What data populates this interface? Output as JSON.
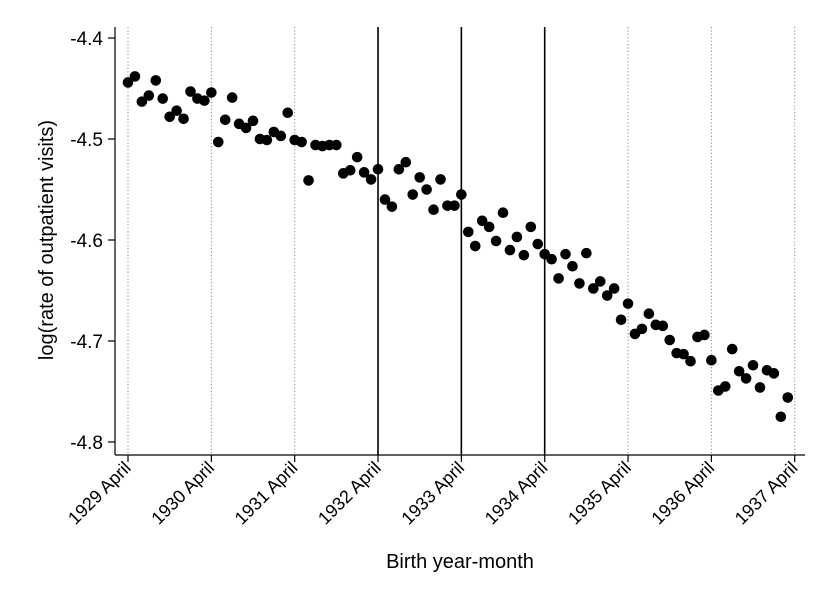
{
  "chart_data": {
    "type": "scatter",
    "xlabel": "Birth year-month",
    "ylabel": "log(rate of outpatient visits)",
    "ylim": [
      -4.81,
      -4.39
    ],
    "yticks": [
      {
        "value": -4.4,
        "label": "-4.4"
      },
      {
        "value": -4.5,
        "label": "-4.5"
      },
      {
        "value": -4.6,
        "label": "-4.6"
      },
      {
        "value": -4.7,
        "label": "-4.7"
      },
      {
        "value": -4.8,
        "label": "-4.8"
      }
    ],
    "xlim": [
      0,
      100
    ],
    "xticks": [
      {
        "value": 0,
        "label": "1929 April"
      },
      {
        "value": 12,
        "label": "1930 April"
      },
      {
        "value": 24,
        "label": "1931 April"
      },
      {
        "value": 36,
        "label": "1932 April"
      },
      {
        "value": 48,
        "label": "1933 April"
      },
      {
        "value": 60,
        "label": "1934 April"
      },
      {
        "value": 72,
        "label": "1935 April"
      },
      {
        "value": 84,
        "label": "1936 April"
      },
      {
        "value": 96,
        "label": "1937 April"
      }
    ],
    "dotted_lines_at": [
      0,
      12,
      24,
      72,
      84,
      96
    ],
    "solid_lines_at": [
      36,
      48,
      60
    ],
    "grid": false,
    "points": [
      [
        0,
        -4.444
      ],
      [
        1,
        -4.438
      ],
      [
        2,
        -4.463
      ],
      [
        3,
        -4.457
      ],
      [
        4,
        -4.442
      ],
      [
        5,
        -4.46
      ],
      [
        6,
        -4.478
      ],
      [
        7,
        -4.472
      ],
      [
        8,
        -4.48
      ],
      [
        9,
        -4.453
      ],
      [
        10,
        -4.46
      ],
      [
        11,
        -4.462
      ],
      [
        12,
        -4.454
      ],
      [
        13,
        -4.503
      ],
      [
        14,
        -4.481
      ],
      [
        15,
        -4.459
      ],
      [
        16,
        -4.485
      ],
      [
        17,
        -4.489
      ],
      [
        18,
        -4.482
      ],
      [
        19,
        -4.5
      ],
      [
        20,
        -4.501
      ],
      [
        21,
        -4.493
      ],
      [
        22,
        -4.497
      ],
      [
        23,
        -4.474
      ],
      [
        24,
        -4.501
      ],
      [
        25,
        -4.503
      ],
      [
        26,
        -4.541
      ],
      [
        27,
        -4.506
      ],
      [
        28,
        -4.507
      ],
      [
        29,
        -4.506
      ],
      [
        30,
        -4.506
      ],
      [
        31,
        -4.534
      ],
      [
        32,
        -4.531
      ],
      [
        33,
        -4.518
      ],
      [
        34,
        -4.533
      ],
      [
        35,
        -4.54
      ],
      [
        36,
        -4.53
      ],
      [
        37,
        -4.56
      ],
      [
        38,
        -4.567
      ],
      [
        39,
        -4.53
      ],
      [
        40,
        -4.523
      ],
      [
        41,
        -4.555
      ],
      [
        42,
        -4.538
      ],
      [
        43,
        -4.55
      ],
      [
        44,
        -4.57
      ],
      [
        45,
        -4.54
      ],
      [
        46,
        -4.566
      ],
      [
        47,
        -4.566
      ],
      [
        48,
        -4.555
      ],
      [
        49,
        -4.592
      ],
      [
        50,
        -4.606
      ],
      [
        51,
        -4.581
      ],
      [
        52,
        -4.587
      ],
      [
        53,
        -4.601
      ],
      [
        54,
        -4.573
      ],
      [
        55,
        -4.61
      ],
      [
        56,
        -4.597
      ],
      [
        57,
        -4.615
      ],
      [
        58,
        -4.587
      ],
      [
        59,
        -4.604
      ],
      [
        60,
        -4.614
      ],
      [
        61,
        -4.619
      ],
      [
        62,
        -4.638
      ],
      [
        63,
        -4.614
      ],
      [
        64,
        -4.626
      ],
      [
        65,
        -4.643
      ],
      [
        66,
        -4.613
      ],
      [
        67,
        -4.648
      ],
      [
        68,
        -4.641
      ],
      [
        69,
        -4.655
      ],
      [
        70,
        -4.648
      ],
      [
        71,
        -4.679
      ],
      [
        72,
        -4.663
      ],
      [
        73,
        -4.693
      ],
      [
        74,
        -4.688
      ],
      [
        75,
        -4.673
      ],
      [
        76,
        -4.684
      ],
      [
        77,
        -4.685
      ],
      [
        78,
        -4.699
      ],
      [
        79,
        -4.712
      ],
      [
        80,
        -4.713
      ],
      [
        81,
        -4.72
      ],
      [
        82,
        -4.696
      ],
      [
        83,
        -4.694
      ],
      [
        84,
        -4.719
      ],
      [
        85,
        -4.749
      ],
      [
        86,
        -4.745
      ],
      [
        87,
        -4.708
      ],
      [
        88,
        -4.73
      ],
      [
        89,
        -4.737
      ],
      [
        90,
        -4.724
      ],
      [
        91,
        -4.746
      ],
      [
        92,
        -4.729
      ],
      [
        93,
        -4.732
      ],
      [
        94,
        -4.775
      ],
      [
        95,
        -4.756
      ]
    ]
  }
}
